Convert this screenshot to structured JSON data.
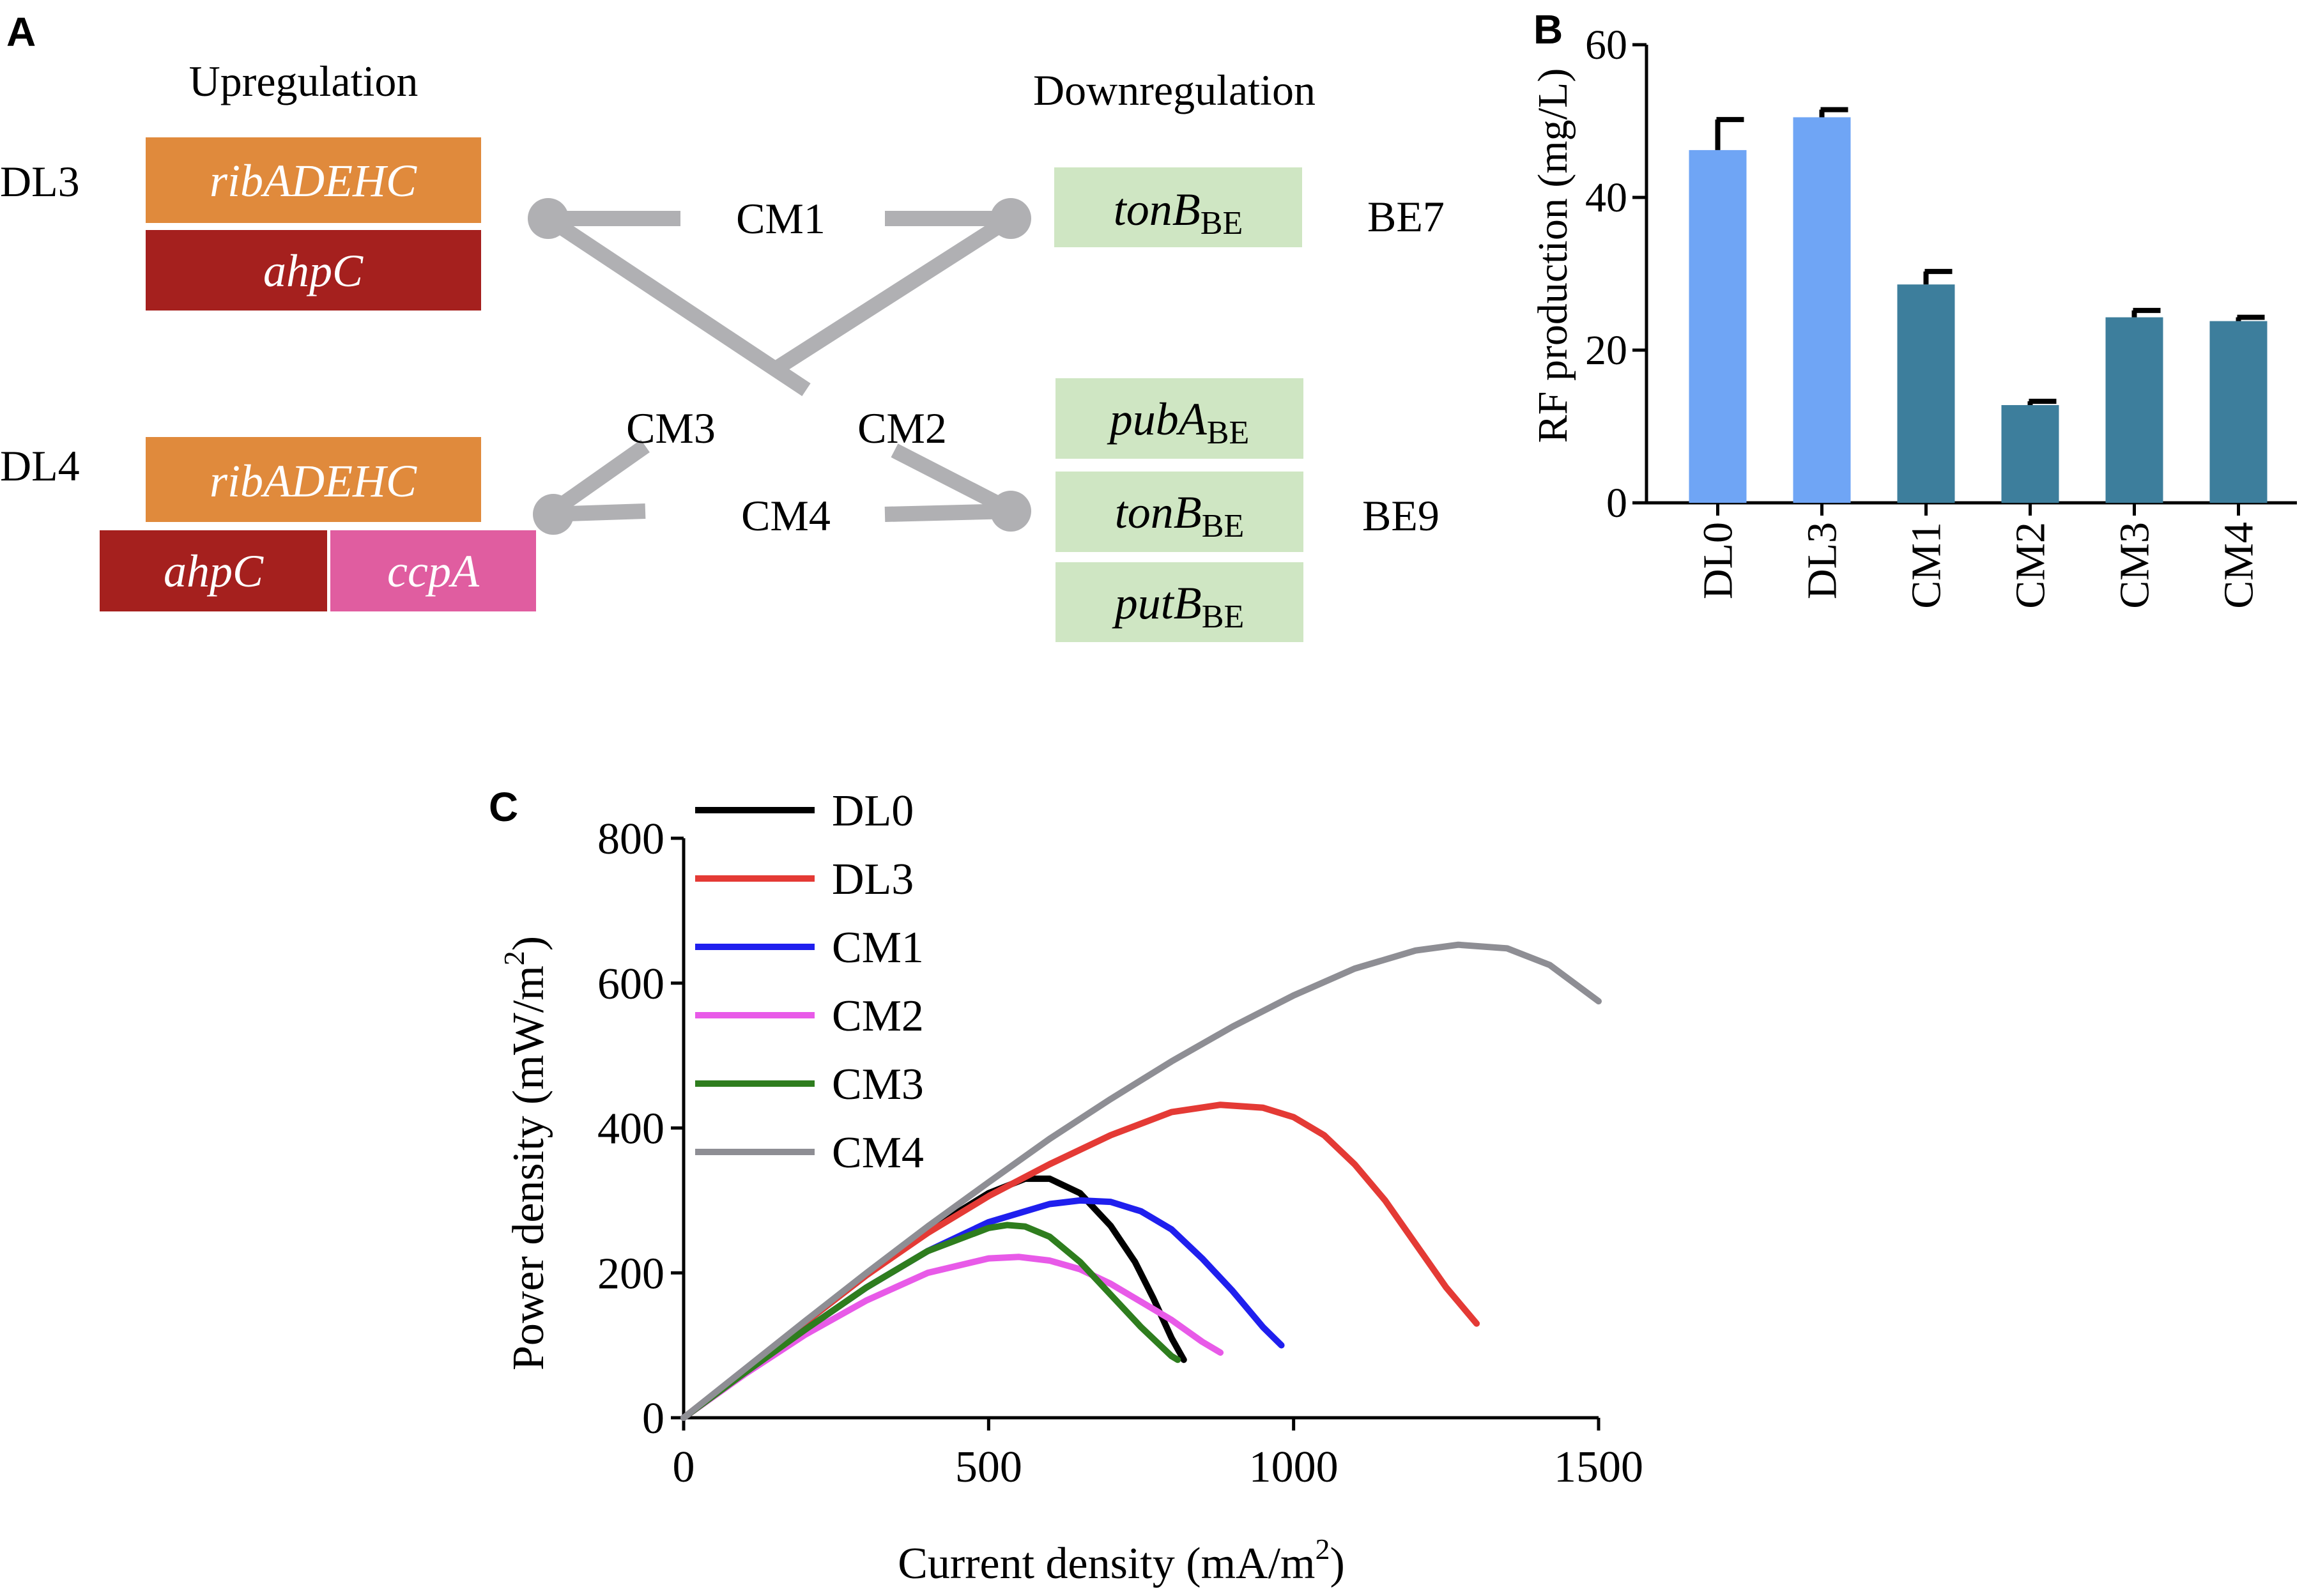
{
  "panel_a": {
    "panel_letter": "A",
    "upregulation_header": "Upregulation",
    "downregulation_header": "Downregulation",
    "dl3_label": "DL3",
    "dl4_label": "DL4",
    "dl3_genes": [
      "ribADEHC",
      "ahpC"
    ],
    "dl4_genes": [
      "ribADEHC",
      "ahpC",
      "ccpA"
    ],
    "be7_label": "BE7",
    "be9_label": "BE9",
    "be7_genes": [
      {
        "name": "tonB",
        "sub": "BE"
      }
    ],
    "be9_genes": [
      {
        "name": "pubA",
        "sub": "BE"
      },
      {
        "name": "tonB",
        "sub": "BE"
      },
      {
        "name": "putB",
        "sub": "BE"
      }
    ],
    "combo_labels": [
      "CM1",
      "CM2",
      "CM3",
      "CM4"
    ],
    "colors": {
      "orange": "#E08A3C",
      "darkred": "#A5201E",
      "pink": "#E05DA0",
      "green": "#CFE6C3",
      "connector": "#B0B0B3"
    }
  },
  "chart_data": [
    {
      "panel_letter": "B",
      "type": "bar",
      "title": "",
      "xlabel": "",
      "ylabel": "RF production (mg/L)",
      "categories": [
        "DL0",
        "DL3",
        "CM1",
        "CM2",
        "CM3",
        "CM4"
      ],
      "values": [
        46.2,
        50.5,
        28.6,
        12.8,
        24.3,
        23.8
      ],
      "errors": [
        4.0,
        1.0,
        1.7,
        0.5,
        0.9,
        0.5
      ],
      "ylim": [
        0,
        60
      ],
      "yticks": [
        0,
        20,
        40,
        60
      ],
      "bar_colors": [
        "#6FA5F5",
        "#6FA5F5",
        "#3D7E9C",
        "#3D7E9C",
        "#3D7E9C",
        "#3D7E9C"
      ]
    },
    {
      "panel_letter": "C",
      "type": "line",
      "title": "",
      "xlabel": "Current density (mA/m",
      "xlabel_sup": "2",
      "xlabel_end": ")",
      "ylabel": "Power density (mW/m",
      "ylabel_sup": "2",
      "ylabel_end": ")",
      "xlim": [
        0,
        1500
      ],
      "ylim": [
        0,
        800
      ],
      "xticks": [
        0,
        500,
        1000,
        1500
      ],
      "yticks": [
        0,
        200,
        400,
        600,
        800
      ],
      "legend_position": "top-left",
      "series": [
        {
          "name": "DL0",
          "color": "#000000",
          "x": [
            0,
            100,
            200,
            300,
            400,
            500,
            560,
            600,
            650,
            700,
            740,
            770,
            800,
            820
          ],
          "y": [
            0,
            66,
            132,
            197,
            258,
            310,
            330,
            330,
            310,
            265,
            215,
            165,
            110,
            80
          ]
        },
        {
          "name": "DL3",
          "color": "#E43A35",
          "x": [
            0,
            100,
            200,
            300,
            400,
            500,
            600,
            700,
            800,
            880,
            950,
            1000,
            1050,
            1100,
            1150,
            1200,
            1250,
            1300
          ],
          "y": [
            0,
            66,
            132,
            197,
            255,
            306,
            350,
            390,
            422,
            432,
            428,
            415,
            390,
            350,
            300,
            240,
            180,
            130
          ]
        },
        {
          "name": "CM1",
          "color": "#1F1FEE",
          "x": [
            0,
            100,
            200,
            300,
            400,
            500,
            600,
            650,
            700,
            750,
            800,
            850,
            900,
            950,
            980
          ],
          "y": [
            0,
            62,
            122,
            180,
            230,
            270,
            295,
            300,
            298,
            285,
            260,
            220,
            175,
            125,
            100
          ]
        },
        {
          "name": "CM2",
          "color": "#E85AE8",
          "x": [
            0,
            100,
            200,
            300,
            400,
            500,
            550,
            600,
            650,
            700,
            750,
            800,
            850,
            880
          ],
          "y": [
            0,
            60,
            115,
            162,
            200,
            220,
            222,
            217,
            205,
            185,
            160,
            135,
            105,
            90
          ]
        },
        {
          "name": "CM3",
          "color": "#2E7D1E",
          "x": [
            0,
            100,
            200,
            300,
            400,
            500,
            530,
            560,
            600,
            650,
            700,
            750,
            800,
            810
          ],
          "y": [
            0,
            62,
            122,
            180,
            230,
            262,
            266,
            264,
            250,
            215,
            170,
            125,
            85,
            80
          ]
        },
        {
          "name": "CM4",
          "color": "#8E8E94",
          "x": [
            0,
            100,
            200,
            300,
            400,
            500,
            600,
            700,
            800,
            900,
            1000,
            1100,
            1200,
            1270,
            1350,
            1420,
            1500
          ],
          "y": [
            0,
            67,
            134,
            200,
            264,
            325,
            385,
            440,
            492,
            540,
            583,
            620,
            645,
            653,
            648,
            625,
            575
          ]
        }
      ]
    }
  ]
}
